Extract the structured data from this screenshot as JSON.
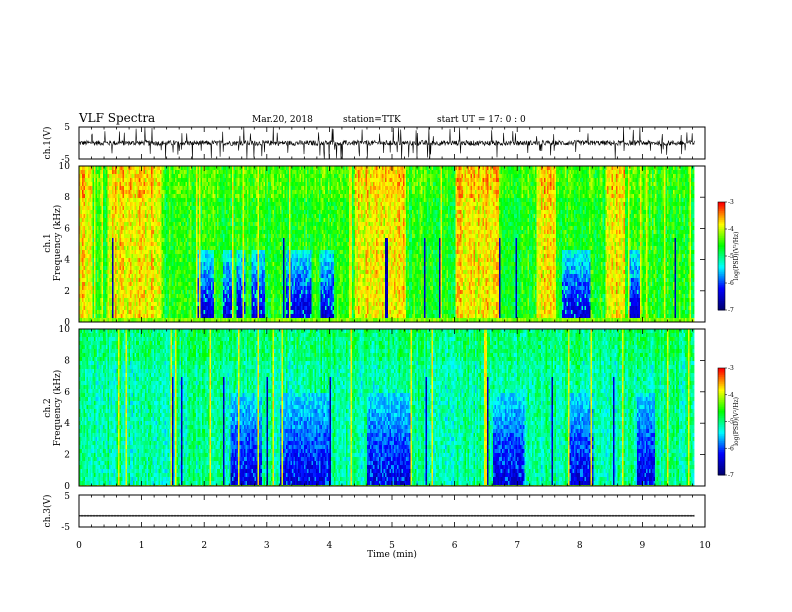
{
  "header": {
    "title": "VLF Spectra",
    "date": "Mar.20, 2018",
    "station": "station=TTK",
    "start": "start  UT  =   17: 0 : 0"
  },
  "chart_data": [
    {
      "type": "line",
      "panel": "ch1-waveform",
      "ylabel": "ch.1(V)",
      "ylim": [
        -5,
        5
      ],
      "yticks": [
        "5",
        "-5"
      ],
      "xlim": [
        0,
        10
      ],
      "data_end_min": 9.83,
      "baseline": 0,
      "noise_band": 0.8,
      "impulsive_spikes": "many, up to panel limits"
    },
    {
      "type": "heatmap",
      "panel": "ch1-spectrogram",
      "ylabel": "ch.1\nFrequency (kHz)",
      "ylabel_lines": [
        "ch.1",
        "Frequency (kHz)"
      ],
      "ylim": [
        0,
        10
      ],
      "yticks": [
        "0",
        "2",
        "4",
        "6",
        "8",
        "10"
      ],
      "xlim": [
        0,
        10
      ],
      "data_end_min": 9.83,
      "colorbar": {
        "range": [
          -7,
          -3
        ],
        "ticks": [
          "-3",
          "-4",
          "-5",
          "-6",
          "-7"
        ],
        "label": "log(PSD)(V²/Hz)"
      },
      "quiet_intervals_min": [
        [
          1.85,
          2.15
        ],
        [
          2.3,
          2.45
        ],
        [
          2.5,
          2.65
        ],
        [
          2.75,
          2.95
        ],
        [
          3.3,
          3.7
        ],
        [
          3.85,
          4.05
        ],
        [
          7.7,
          8.15
        ],
        [
          8.75,
          8.95
        ]
      ],
      "quiet_freq_top_khz": 4.5,
      "active_intervals_min": [
        [
          0.0,
          0.2
        ],
        [
          0.45,
          1.3
        ],
        [
          4.4,
          5.2
        ],
        [
          6.0,
          6.7
        ],
        [
          7.3,
          7.6
        ],
        [
          8.4,
          8.7
        ]
      ],
      "noise_floor_level": -4.6
    },
    {
      "type": "heatmap",
      "panel": "ch2-spectrogram",
      "ylabel": "ch.2\nFrequency (kHz)",
      "ylabel_lines": [
        "ch.2",
        "Frequency (kHz)"
      ],
      "ylim": [
        0,
        10
      ],
      "yticks": [
        "0",
        "2",
        "4",
        "6",
        "8",
        "10"
      ],
      "xlim": [
        0,
        10
      ],
      "data_end_min": 9.83,
      "colorbar": {
        "range": [
          -7,
          -3
        ],
        "ticks": [
          "-3",
          "-4",
          "-5",
          "-6",
          "-7"
        ],
        "label": "log(PSD)(V²/Hz)"
      },
      "quiet_intervals_min": [
        [
          2.4,
          2.9
        ],
        [
          3.2,
          4.0
        ],
        [
          4.6,
          5.3
        ],
        [
          6.6,
          7.1
        ],
        [
          7.8,
          8.2
        ],
        [
          8.9,
          9.2
        ]
      ],
      "quiet_freq_top_khz": 6.0,
      "noise_floor_level": -5.1
    },
    {
      "type": "line",
      "panel": "ch3-waveform",
      "ylabel": "ch.3(V)",
      "ylim": [
        -5,
        5
      ],
      "yticks": [
        "5",
        "-5"
      ],
      "xlim": [
        0,
        10
      ],
      "data_end_min": 9.83,
      "baseline": -1.5,
      "noise_band": 0.05
    }
  ],
  "xaxis": {
    "label": "Time  (min)",
    "ticks": [
      "0",
      "1",
      "2",
      "3",
      "4",
      "5",
      "6",
      "7",
      "8",
      "9",
      "10"
    ]
  },
  "colors": {
    "scale": [
      "#000070",
      "#0000ff",
      "#00ffff",
      "#00ff00",
      "#ffff00",
      "#ff0000",
      "#ffffff"
    ]
  }
}
